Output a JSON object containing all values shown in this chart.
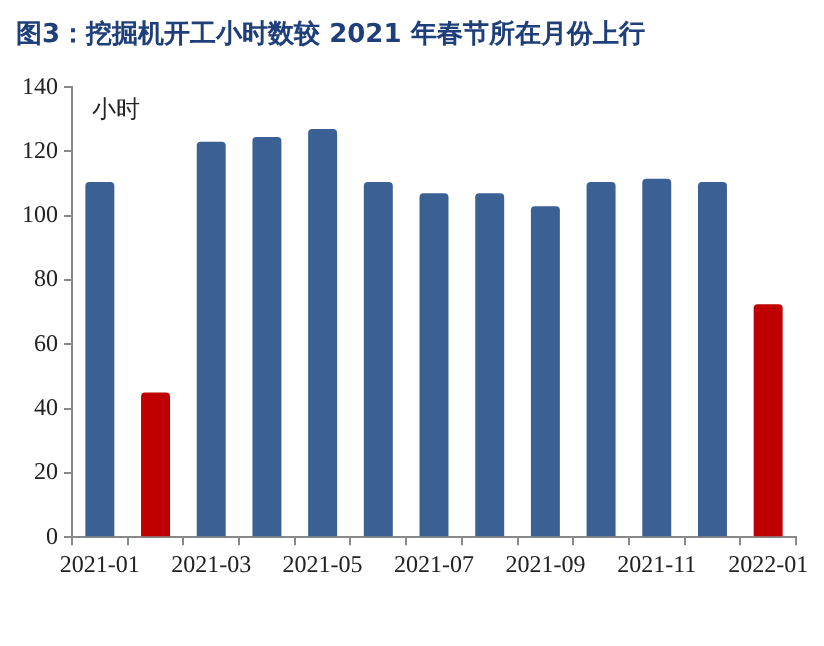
{
  "chart_data": {
    "type": "bar",
    "title": "图3：挖掘机开工小时数较 2021 年春节所在月份上行",
    "ylabel": "小时",
    "categories": [
      "2021-01",
      null,
      "2021-03",
      null,
      "2021-05",
      null,
      "2021-07",
      null,
      "2021-09",
      null,
      "2021-11",
      null,
      "2022-01"
    ],
    "values": [
      110.5,
      45,
      123,
      124.5,
      127,
      110.5,
      107,
      107,
      103,
      110.5,
      111.5,
      110.5,
      72.5
    ],
    "colors": [
      "#3a6094",
      "#c00000",
      "#3a6094",
      "#3a6094",
      "#3a6094",
      "#3a6094",
      "#3a6094",
      "#3a6094",
      "#3a6094",
      "#3a6094",
      "#3a6094",
      "#3a6094",
      "#c00000"
    ],
    "ylim": [
      0,
      140
    ],
    "yticks": [
      0,
      20,
      40,
      60,
      80,
      100,
      120,
      140
    ],
    "grid": false
  }
}
